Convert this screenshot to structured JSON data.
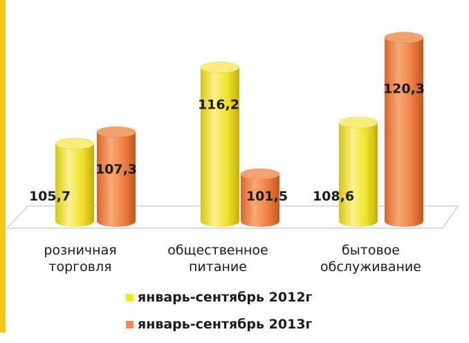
{
  "colors": {
    "series_2012": "#f5e626",
    "series_2013": "#f08a4d",
    "left_stripe": "#f6c21b"
  },
  "chart_data": {
    "type": "bar",
    "categories": [
      [
        "розничная",
        "торговля"
      ],
      [
        "общественное",
        "питание"
      ],
      [
        "бытовое",
        "обслуживание"
      ]
    ],
    "series": [
      {
        "name": "январь-сентябрь 2012г",
        "values": [
          105.7,
          116.2,
          108.6
        ],
        "labels": [
          "105,7",
          "116,2",
          "108,6"
        ]
      },
      {
        "name": "январь-сентябрь 2013г",
        "values": [
          107.3,
          101.5,
          120.3
        ],
        "labels": [
          "107,3",
          "101,5",
          "120,3"
        ]
      }
    ],
    "grid": false,
    "legend_position": "bottom"
  }
}
